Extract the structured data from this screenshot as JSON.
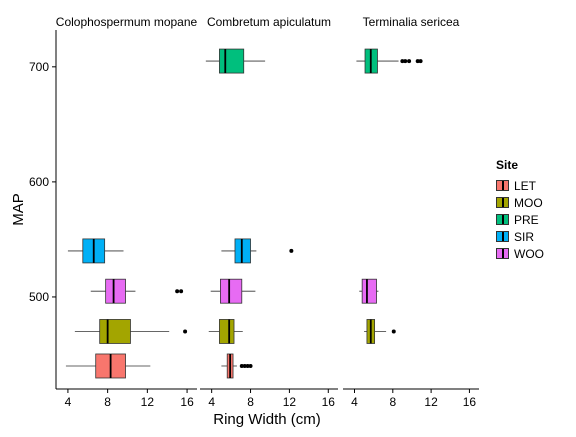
{
  "chart_data": {
    "type": "boxplot",
    "orientation": "horizontal",
    "facets": [
      "Colophospermum mopane",
      "Combretum apiculatum",
      "Terminalia sericea"
    ],
    "xlabel": "Ring Width (cm)",
    "ylabel": "MAP",
    "x_ticks": [
      4,
      8,
      12,
      16
    ],
    "y_ticks": [
      500,
      600,
      700
    ],
    "xlim": [
      2.8,
      17
    ],
    "ylim": [
      420,
      732
    ],
    "legend_title": "Site",
    "legend_position": "right",
    "grid": false,
    "sites": [
      {
        "name": "LET",
        "color": "#F8766D",
        "map": 440
      },
      {
        "name": "MOO",
        "color": "#A3A500",
        "map": 470
      },
      {
        "name": "PRE",
        "color": "#00BF7D",
        "map": 705
      },
      {
        "name": "SIR",
        "color": "#00B0F6",
        "map": 540
      },
      {
        "name": "WOO",
        "color": "#E76BF3",
        "map": 505
      }
    ],
    "series": [
      {
        "facet": 0,
        "site": "LET",
        "map": 440,
        "whisker_low": 3.8,
        "q1": 6.8,
        "median": 8.3,
        "q3": 9.8,
        "whisker_high": 12.3,
        "outliers": []
      },
      {
        "facet": 0,
        "site": "MOO",
        "map": 470,
        "whisker_low": 4.7,
        "q1": 7.2,
        "median": 8.0,
        "q3": 10.3,
        "whisker_high": 14.2,
        "outliers": [
          15.8
        ]
      },
      {
        "facet": 0,
        "site": "WOO",
        "map": 505,
        "whisker_low": 6.3,
        "q1": 7.8,
        "median": 8.6,
        "q3": 9.8,
        "whisker_high": 10.8,
        "outliers": [
          15.0,
          15.4
        ]
      },
      {
        "facet": 0,
        "site": "SIR",
        "map": 540,
        "whisker_low": 4.0,
        "q1": 5.5,
        "median": 6.6,
        "q3": 7.7,
        "whisker_high": 9.6,
        "outliers": []
      },
      {
        "facet": 1,
        "site": "LET",
        "map": 440,
        "whisker_low": 5.0,
        "q1": 5.6,
        "median": 5.9,
        "q3": 6.2,
        "whisker_high": 6.6,
        "outliers": [
          7.1,
          7.4,
          7.7,
          8.0
        ]
      },
      {
        "facet": 1,
        "site": "MOO",
        "map": 470,
        "whisker_low": 3.7,
        "q1": 4.8,
        "median": 5.8,
        "q3": 6.3,
        "whisker_high": 7.2,
        "outliers": []
      },
      {
        "facet": 1,
        "site": "WOO",
        "map": 505,
        "whisker_low": 3.9,
        "q1": 4.9,
        "median": 5.8,
        "q3": 7.1,
        "whisker_high": 8.5,
        "outliers": []
      },
      {
        "facet": 1,
        "site": "SIR",
        "map": 540,
        "whisker_low": 5.0,
        "q1": 6.4,
        "median": 7.1,
        "q3": 8.0,
        "whisker_high": 8.6,
        "outliers": [
          12.2
        ]
      },
      {
        "facet": 1,
        "site": "PRE",
        "map": 705,
        "whisker_low": 3.4,
        "q1": 4.8,
        "median": 5.4,
        "q3": 7.3,
        "whisker_high": 9.5,
        "outliers": []
      },
      {
        "facet": 2,
        "site": "MOO",
        "map": 470,
        "whisker_low": 5.0,
        "q1": 5.3,
        "median": 5.7,
        "q3": 6.1,
        "whisker_high": 7.3,
        "outliers": [
          8.1
        ]
      },
      {
        "facet": 2,
        "site": "WOO",
        "map": 505,
        "whisker_low": 4.5,
        "q1": 4.8,
        "median": 5.3,
        "q3": 6.3,
        "whisker_high": 6.5,
        "outliers": []
      },
      {
        "facet": 2,
        "site": "PRE",
        "map": 705,
        "whisker_low": 4.2,
        "q1": 5.1,
        "median": 5.7,
        "q3": 6.4,
        "whisker_high": 8.6,
        "outliers": [
          9.0,
          9.3,
          9.7,
          10.6,
          10.9
        ]
      }
    ]
  }
}
